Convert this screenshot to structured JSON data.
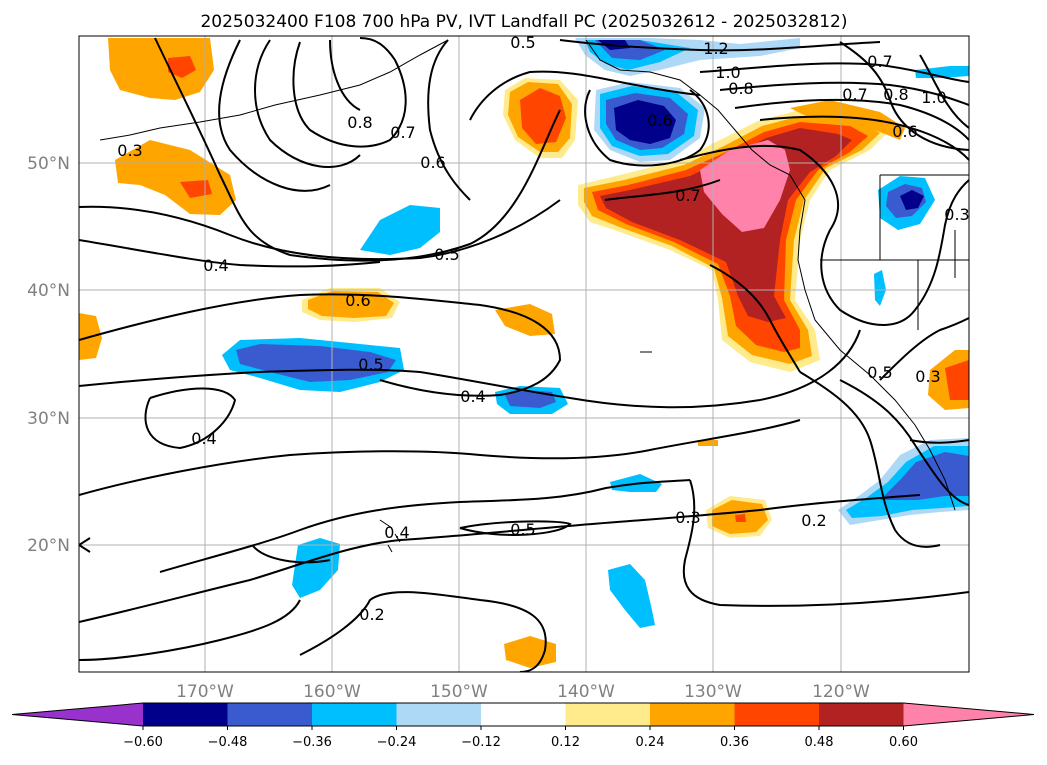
{
  "title": "2025032400 F108 700 hPa PV, IVT Landfall PC (2025032612 - 2025032812)",
  "map": {
    "lon_ticks": [
      "170°W",
      "160°W",
      "150°W",
      "140°W",
      "130°W",
      "120°W"
    ],
    "lat_ticks": [
      "50°N",
      "40°N",
      "30°N",
      "20°N"
    ],
    "grid": true,
    "contour_labels": [
      "0.5",
      "1.2",
      "1.0",
      "0.8",
      "0.7",
      "0.8",
      "0.7",
      "0.6",
      "1.0",
      "0.3",
      "0.8",
      "0.7",
      "0.6",
      "0.6",
      "0.7",
      "0.4",
      "0.5",
      "0.6",
      "0.5",
      "0.4",
      "0.4",
      "0.3",
      "0.3",
      "0.5",
      "0.2",
      "0.4",
      "0.5",
      "0.3",
      "0.2",
      "0.3"
    ]
  },
  "colorbar": {
    "colors": [
      "#9932cc",
      "#00008b",
      "#3a5bd0",
      "#00bfff",
      "#add8f6",
      "#ffffff",
      "#ffeb8c",
      "#ffa500",
      "#ff4500",
      "#b22222",
      "#ff82ab"
    ],
    "tick_labels": [
      "−0.60",
      "−0.48",
      "−0.36",
      "−0.24",
      "−0.12",
      "0.12",
      "0.24",
      "0.36",
      "0.48",
      "0.60"
    ]
  }
}
